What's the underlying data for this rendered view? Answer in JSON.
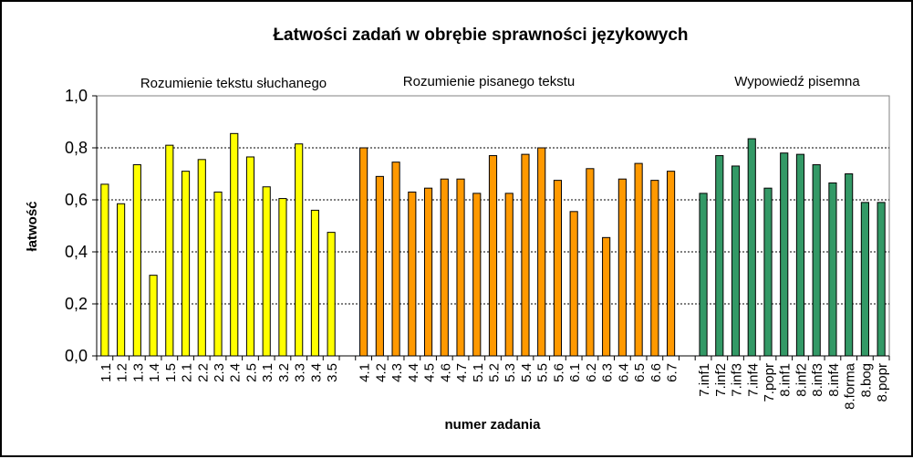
{
  "chart_data": {
    "type": "bar",
    "title": "Łatwości zadań w obrębie sprawności językowych",
    "xlabel": "numer zadania",
    "ylabel": "łatwość",
    "ylim": [
      0,
      1
    ],
    "yticks": [
      "0,0",
      "0,2",
      "0,4",
      "0,6",
      "0,8",
      "1,0"
    ],
    "grid": true,
    "groups": [
      {
        "name": "Rozumienie tekstu słuchanego",
        "color": "#FFFF00",
        "categories": [
          "1.1",
          "1.2",
          "1.3",
          "1.4",
          "1.5",
          "2.1",
          "2.2",
          "2.3",
          "2.4",
          "2.5",
          "3.1",
          "3.2",
          "3.3",
          "3.4",
          "3.5"
        ],
        "values": [
          0.66,
          0.585,
          0.735,
          0.31,
          0.81,
          0.71,
          0.755,
          0.63,
          0.855,
          0.765,
          0.65,
          0.605,
          0.815,
          0.56,
          0.475
        ]
      },
      {
        "name": "Rozumienie pisanego tekstu",
        "color": "#FF9900",
        "categories": [
          "4.1",
          "4.2",
          "4.3",
          "4.4",
          "4.5",
          "4.6",
          "4.7",
          "5.1",
          "5.2",
          "5.3",
          "5.4",
          "5.5",
          "5.6",
          "6.1",
          "6.2",
          "6.3",
          "6.4",
          "6.5",
          "6.6",
          "6.7"
        ],
        "values": [
          0.8,
          0.69,
          0.745,
          0.63,
          0.645,
          0.68,
          0.68,
          0.625,
          0.77,
          0.625,
          0.775,
          0.8,
          0.675,
          0.555,
          0.72,
          0.455,
          0.68,
          0.74,
          0.675,
          0.71
        ]
      },
      {
        "name": "Wypowiedź pisemna",
        "color": "#339966",
        "categories": [
          "7.inf1",
          "7.inf2",
          "7.inf3",
          "7.inf4",
          "7.popr",
          "8.inf1",
          "8.inf2",
          "8.inf3",
          "8.inf4",
          "8.forma",
          "8.bog",
          "8.popr"
        ],
        "values": [
          0.625,
          0.77,
          0.73,
          0.835,
          0.645,
          0.78,
          0.775,
          0.735,
          0.665,
          0.7,
          0.59,
          0.59
        ]
      }
    ]
  }
}
